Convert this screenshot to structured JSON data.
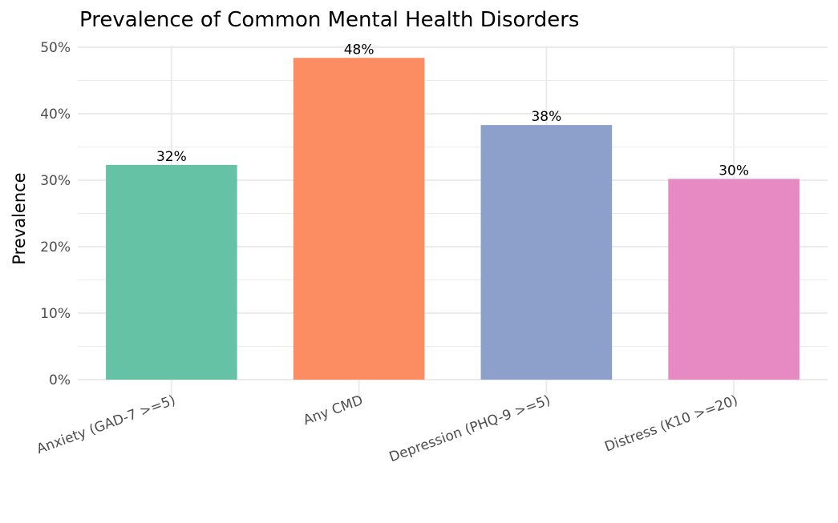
{
  "chart_data": {
    "type": "bar",
    "title": "Prevalence of Common Mental Health Disorders",
    "xlabel": "",
    "ylabel": "Prevalence",
    "categories": [
      "Anxiety (GAD-7 >=5)",
      "Any CMD",
      "Depression (PHQ-9 >=5)",
      "Distress (K10 >=20)"
    ],
    "values": [
      32.3,
      48.4,
      38.3,
      30.2
    ],
    "data_labels": [
      "32%",
      "48%",
      "38%",
      "30%"
    ],
    "colors": [
      "#66c2a5",
      "#fc8d62",
      "#8da0cb",
      "#e78ac3"
    ],
    "ylim": [
      0,
      50
    ],
    "yticks": [
      0,
      10,
      20,
      30,
      40,
      50
    ],
    "ytick_labels": [
      "0%",
      "10%",
      "20%",
      "30%",
      "40%",
      "50%"
    ],
    "grid": true,
    "legend": "none"
  }
}
